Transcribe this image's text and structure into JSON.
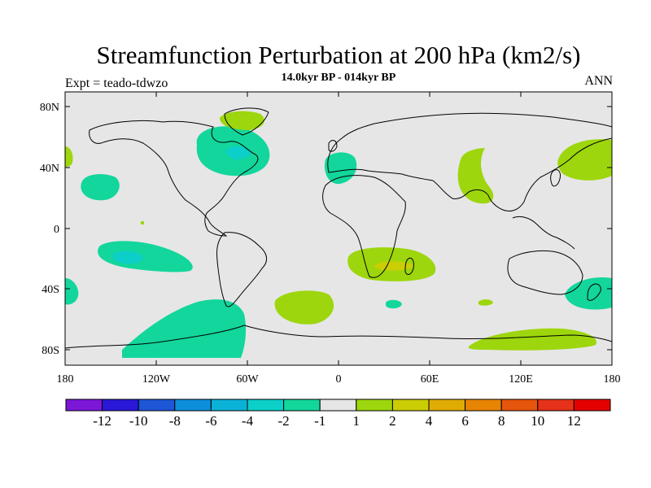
{
  "header": {
    "title": "Streamfunction Perturbation at 200 hPa (km2/s)",
    "subtitle": "14.0kyr BP - 014kyr BP",
    "left_label": "Expt = teado-tdwzo",
    "right_label": "ANN"
  },
  "map": {
    "lat_ticks": [
      "80N",
      "40N",
      "0",
      "40S",
      "80S"
    ],
    "lon_ticks": [
      "180",
      "120W",
      "60W",
      "0",
      "60E",
      "120E",
      "180"
    ]
  },
  "colorbar": {
    "labels": [
      "-12",
      "-10",
      "-8",
      "-6",
      "-4",
      "-2",
      "-1",
      "1",
      "2",
      "4",
      "6",
      "8",
      "10",
      "12"
    ],
    "colors": [
      "#7c17d8",
      "#2a18d8",
      "#1d56d6",
      "#0d8edb",
      "#0bb2d8",
      "#0ccfc9",
      "#13d69c",
      "#e6e6e6",
      "#9dd60d",
      "#cbcd05",
      "#e0ab04",
      "#e88403",
      "#e6550c",
      "#e6321a",
      "#e50000"
    ]
  },
  "style": {
    "ocean": "#e6e6e6",
    "neg1": "#13d69c",
    "neg2": "#0ccfc9",
    "pos1": "#9dd60d",
    "pos2": "#cbcd05",
    "pos3": "#e0ab04"
  }
}
